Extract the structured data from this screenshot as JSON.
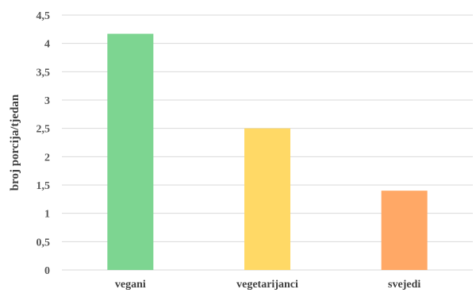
{
  "chart_data": {
    "type": "bar",
    "categories": [
      "vegani",
      "vegetarijanci",
      "svejedi"
    ],
    "values": [
      4.17,
      2.5,
      1.4
    ],
    "colors": [
      "#7dd591",
      "#ffd966",
      "#ffa866"
    ],
    "title": "",
    "xlabel": "",
    "ylabel": "broj porcija/tjedan",
    "ylim": [
      0,
      4.5
    ],
    "yticks": [
      "0",
      "0,5",
      "1",
      "1,5",
      "2",
      "2,5",
      "3",
      "3,5",
      "4",
      "4,5"
    ],
    "grid": true,
    "legend": "none"
  }
}
